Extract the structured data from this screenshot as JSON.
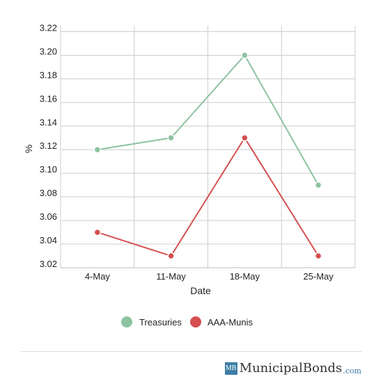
{
  "chart_data": {
    "type": "line",
    "categories": [
      "4-May",
      "11-May",
      "18-May",
      "25-May"
    ],
    "series": [
      {
        "name": "Treasuries",
        "color": "#8dc3a0",
        "values": [
          3.12,
          3.13,
          3.2,
          3.09
        ]
      },
      {
        "name": "AAA-Munis",
        "color": "#d64f50",
        "values": [
          3.05,
          3.03,
          3.13,
          3.03
        ]
      }
    ],
    "xlabel": "Date",
    "ylabel": "%",
    "ylim": [
      3.02,
      3.225
    ],
    "yticks": [
      "3.02",
      "3.04",
      "3.06",
      "3.08",
      "3.10",
      "3.12",
      "3.14",
      "3.16",
      "3.18",
      "3.20",
      "3.22"
    ],
    "grid": true,
    "legend_position": "bottom"
  },
  "brand": {
    "logo": "MB",
    "name": "MunicipalBonds",
    "tld": ".com"
  }
}
